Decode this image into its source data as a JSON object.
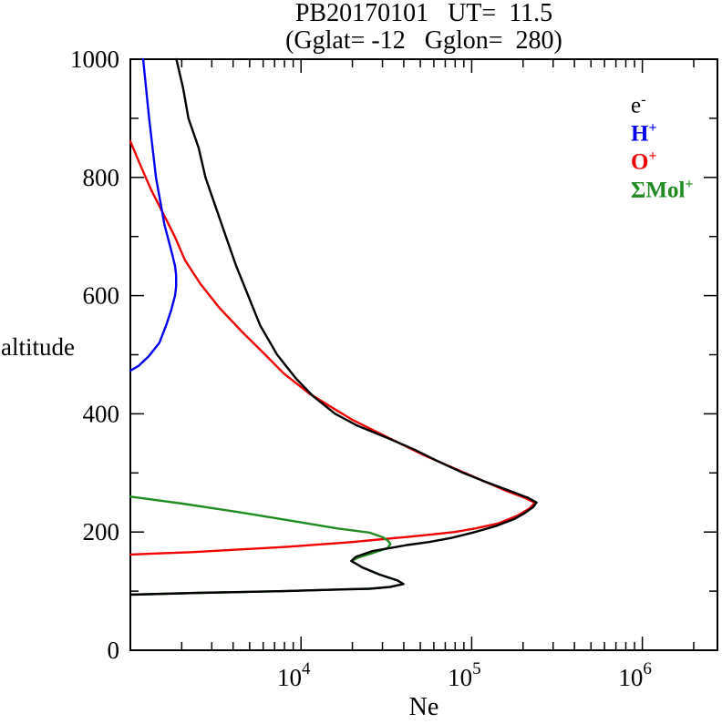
{
  "figure": {
    "title": "PB20170101   UT=  11.5",
    "subtitle": "(Gglat= -12   Gglon=  280)"
  },
  "chart_data": {
    "type": "line",
    "title": "PB20170101   UT=  11.5",
    "subtitle": "(Gglat= -12   Gglon=  280)",
    "xlabel": "Ne",
    "ylabel": "altitude",
    "x_scale": "log10",
    "xlim_log10": [
      3.0,
      6.44
    ],
    "ylim": [
      0,
      1000
    ],
    "x_major_ticks": [
      {
        "base": "10",
        "exp": "4",
        "log10": 4
      },
      {
        "base": "10",
        "exp": "5",
        "log10": 5
      },
      {
        "base": "10",
        "exp": "6",
        "log10": 6
      }
    ],
    "y_major_ticks": [
      0,
      200,
      400,
      600,
      800,
      1000
    ],
    "y_minor_step": 100,
    "grid": false,
    "legend_position": "inside-top-right",
    "series": [
      {
        "name": "electron-density",
        "label_base": "e",
        "label_sup": "-",
        "color": "#000000",
        "bold_legend": false,
        "points_log10ne_alt": [
          [
            3.27,
            1000
          ],
          [
            3.31,
            950
          ],
          [
            3.34,
            900
          ],
          [
            3.4,
            850
          ],
          [
            3.44,
            800
          ],
          [
            3.5,
            750
          ],
          [
            3.56,
            700
          ],
          [
            3.62,
            650
          ],
          [
            3.69,
            600
          ],
          [
            3.76,
            550
          ],
          [
            3.86,
            500
          ],
          [
            3.97,
            460
          ],
          [
            4.07,
            430
          ],
          [
            4.2,
            400
          ],
          [
            4.33,
            380
          ],
          [
            4.5,
            360
          ],
          [
            4.66,
            340
          ],
          [
            4.8,
            320
          ],
          [
            4.95,
            300
          ],
          [
            5.08,
            285
          ],
          [
            5.22,
            270
          ],
          [
            5.33,
            258
          ],
          [
            5.38,
            250
          ],
          [
            5.36,
            242
          ],
          [
            5.31,
            232
          ],
          [
            5.25,
            222
          ],
          [
            5.14,
            210
          ],
          [
            5.02,
            200
          ],
          [
            4.88,
            190
          ],
          [
            4.75,
            183
          ],
          [
            4.62,
            178
          ],
          [
            4.545,
            174
          ],
          [
            4.42,
            168
          ],
          [
            4.32,
            158
          ],
          [
            4.295,
            151
          ],
          [
            4.36,
            140
          ],
          [
            4.46,
            128
          ],
          [
            4.565,
            118
          ],
          [
            4.6,
            112
          ],
          [
            4.52,
            107
          ],
          [
            4.4,
            104
          ],
          [
            4.25,
            103
          ],
          [
            3.9,
            100
          ],
          [
            3.4,
            97
          ],
          [
            3.0,
            94
          ]
        ]
      },
      {
        "name": "hydrogen-ion",
        "label_base": "H",
        "label_sup": "+",
        "color": "#0000ee",
        "bold_legend": true,
        "points_log10ne_alt": [
          [
            3.075,
            1000
          ],
          [
            3.11,
            900
          ],
          [
            3.15,
            800
          ],
          [
            3.2,
            720
          ],
          [
            3.245,
            670
          ],
          [
            3.262,
            650
          ],
          [
            3.268,
            635
          ],
          [
            3.268,
            615
          ],
          [
            3.262,
            600
          ],
          [
            3.24,
            576
          ],
          [
            3.21,
            550
          ],
          [
            3.17,
            520
          ],
          [
            3.107,
            497
          ],
          [
            3.048,
            481
          ],
          [
            3.0,
            473
          ]
        ]
      },
      {
        "name": "oxygen-ion",
        "label_base": "O",
        "label_sup": "+",
        "color": "#ee0000",
        "bold_legend": true,
        "points_log10ne_alt": [
          [
            3.0,
            861
          ],
          [
            3.06,
            820
          ],
          [
            3.12,
            780
          ],
          [
            3.19,
            740
          ],
          [
            3.26,
            700
          ],
          [
            3.32,
            660
          ],
          [
            3.41,
            620
          ],
          [
            3.52,
            580
          ],
          [
            3.65,
            540
          ],
          [
            3.79,
            500
          ],
          [
            3.9,
            468
          ],
          [
            4.05,
            434
          ],
          [
            4.18,
            411
          ],
          [
            4.3,
            390
          ],
          [
            4.44,
            370
          ],
          [
            4.58,
            350
          ],
          [
            4.72,
            330
          ],
          [
            4.88,
            310
          ],
          [
            5.04,
            290
          ],
          [
            5.2,
            270
          ],
          [
            5.31,
            258
          ],
          [
            5.37,
            250
          ],
          [
            5.34,
            240
          ],
          [
            5.27,
            228
          ],
          [
            5.16,
            215
          ],
          [
            5.02,
            206
          ],
          [
            4.9,
            200
          ],
          [
            4.77,
            196
          ],
          [
            4.63,
            192
          ],
          [
            4.48,
            188
          ],
          [
            4.3,
            183
          ],
          [
            4.11,
            179
          ],
          [
            3.92,
            175
          ],
          [
            3.73,
            172
          ],
          [
            3.55,
            169
          ],
          [
            3.36,
            166
          ],
          [
            3.18,
            164
          ],
          [
            3.0,
            162
          ]
        ]
      },
      {
        "name": "molecular-ions",
        "label_base": "ΣMol",
        "label_sup": "+",
        "color": "#1f8c1f",
        "bold_legend": true,
        "points_log10ne_alt": [
          [
            3.0,
            260
          ],
          [
            3.305,
            248
          ],
          [
            3.626,
            234
          ],
          [
            3.947,
            219
          ],
          [
            4.214,
            206
          ],
          [
            4.4,
            199
          ],
          [
            4.48,
            191
          ],
          [
            4.51,
            185
          ],
          [
            4.524,
            180
          ],
          [
            4.508,
            173
          ],
          [
            4.428,
            165
          ],
          [
            4.337,
            157
          ],
          [
            4.295,
            151
          ],
          [
            4.36,
            140
          ],
          [
            4.46,
            128
          ],
          [
            4.565,
            118
          ],
          [
            4.6,
            112
          ],
          [
            4.52,
            107
          ],
          [
            4.4,
            104
          ],
          [
            4.25,
            103
          ],
          [
            3.9,
            100
          ],
          [
            3.4,
            97
          ],
          [
            3.0,
            94
          ]
        ]
      }
    ]
  }
}
